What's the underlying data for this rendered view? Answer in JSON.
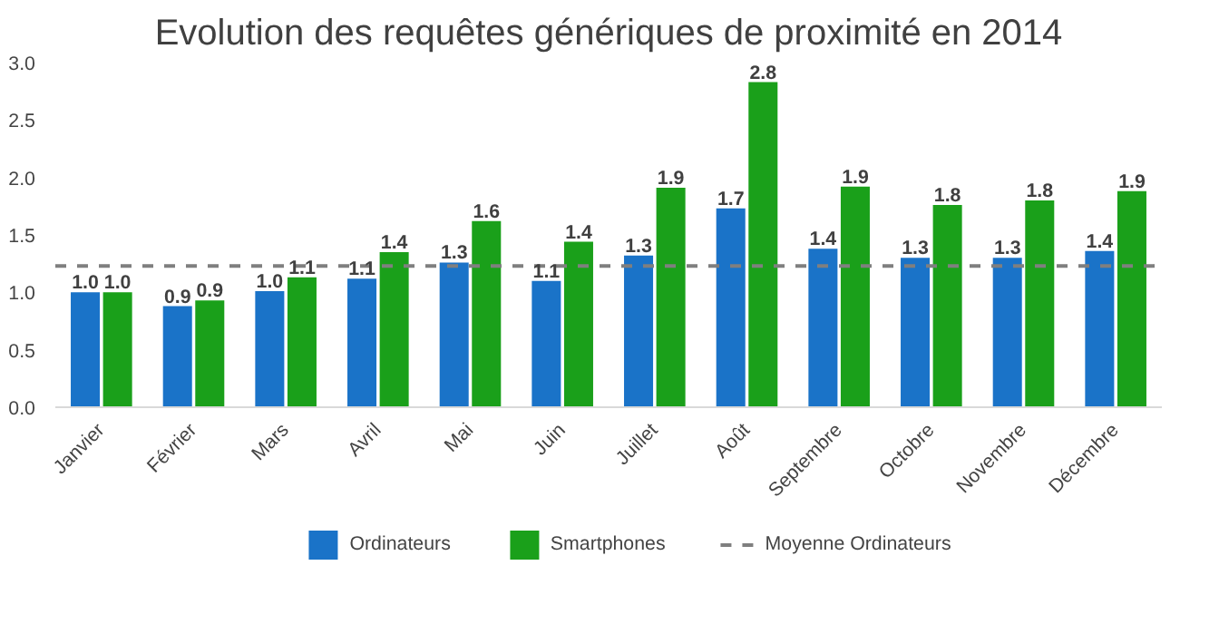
{
  "chart_data": {
    "type": "bar",
    "title": "Evolution des requêtes génériques de proximité en 2014",
    "categories": [
      "Janvier",
      "Février",
      "Mars",
      "Avril",
      "Mai",
      "Juin",
      "Juillet",
      "Août",
      "Septembre",
      "Octobre",
      "Novembre",
      "Décembre"
    ],
    "series": [
      {
        "name": "Ordinateurs",
        "color": "#1a73c8",
        "values": [
          1.0,
          0.88,
          1.01,
          1.12,
          1.26,
          1.1,
          1.32,
          1.73,
          1.38,
          1.3,
          1.3,
          1.36
        ],
        "value_labels": [
          "1.0",
          "0.9",
          "1.0",
          "1.1",
          "1.3",
          "1.1",
          "1.3",
          "1.7",
          "1.4",
          "1.3",
          "1.3",
          "1.4"
        ]
      },
      {
        "name": "Smartphones",
        "color": "#1aa01a",
        "values": [
          1.0,
          0.93,
          1.13,
          1.35,
          1.62,
          1.44,
          1.91,
          2.83,
          1.92,
          1.76,
          1.8,
          1.88
        ],
        "value_labels": [
          "1.0",
          "0.9",
          "1.1",
          "1.4",
          "1.6",
          "1.4",
          "1.9",
          "2.8",
          "1.9",
          "1.8",
          "1.8",
          "1.9"
        ]
      }
    ],
    "ref_lines": [
      {
        "axis": "y",
        "value": 1.23,
        "label": "Moyenne Ordinateurs",
        "color": "#7f7f7f",
        "line_style": "dashed"
      }
    ],
    "ylim": [
      0,
      3
    ],
    "yticks": [
      {
        "value": 0,
        "label": "0.0"
      },
      {
        "value": 0.5,
        "label": "0.5"
      },
      {
        "value": 1,
        "label": "1.0"
      },
      {
        "value": 1.5,
        "label": "1.5"
      },
      {
        "value": 2,
        "label": "2.0"
      },
      {
        "value": 2.5,
        "label": "2.5"
      },
      {
        "value": 3,
        "label": "3.0"
      }
    ],
    "grid": false,
    "legend": "bottom"
  }
}
